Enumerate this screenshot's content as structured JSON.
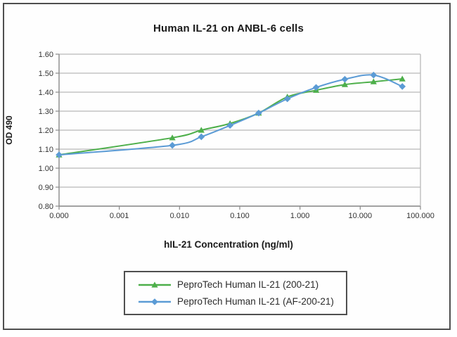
{
  "chart_data": {
    "type": "line",
    "title": "Human IL-21 on ANBL-6 cells",
    "xlabel": "hIL-21 Concentration (ng/ml)",
    "ylabel": "OD 490",
    "x_scale": "log-with-zero-origin",
    "grid": "horizontal",
    "legend_position": "bottom-center",
    "ylim": [
      0.8,
      1.6
    ],
    "y_ticks": [
      1.6,
      1.5,
      1.4,
      1.3,
      1.2,
      1.1,
      1.0,
      0.9,
      0.8
    ],
    "x_tick_labels": [
      "0.000",
      "0.001",
      "0.010",
      "0.100",
      "1.000",
      "10.000",
      "100.000"
    ],
    "x_tick_values": [
      0,
      0.001,
      0.01,
      0.1,
      1,
      10,
      100
    ],
    "x": [
      0,
      0.0076,
      0.023,
      0.069,
      0.206,
      0.617,
      1.852,
      5.556,
      16.667,
      50
    ],
    "series": [
      {
        "name": "PeproTech Human IL-21 (200-21)",
        "color": "#4daf4a",
        "marker": "triangle",
        "values": [
          1.07,
          1.16,
          1.2,
          1.235,
          1.29,
          1.375,
          1.41,
          1.44,
          1.455,
          1.47
        ]
      },
      {
        "name": "PeproTech Human IL-21 (AF-200-21)",
        "color": "#5b9bd5",
        "marker": "diamond",
        "values": [
          1.07,
          1.12,
          1.165,
          1.225,
          1.29,
          1.365,
          1.425,
          1.468,
          1.49,
          1.43
        ]
      }
    ],
    "colors": {
      "gridline": "#b9b9b9",
      "axis": "#8a8a8a",
      "tick_text": "#333333"
    }
  }
}
